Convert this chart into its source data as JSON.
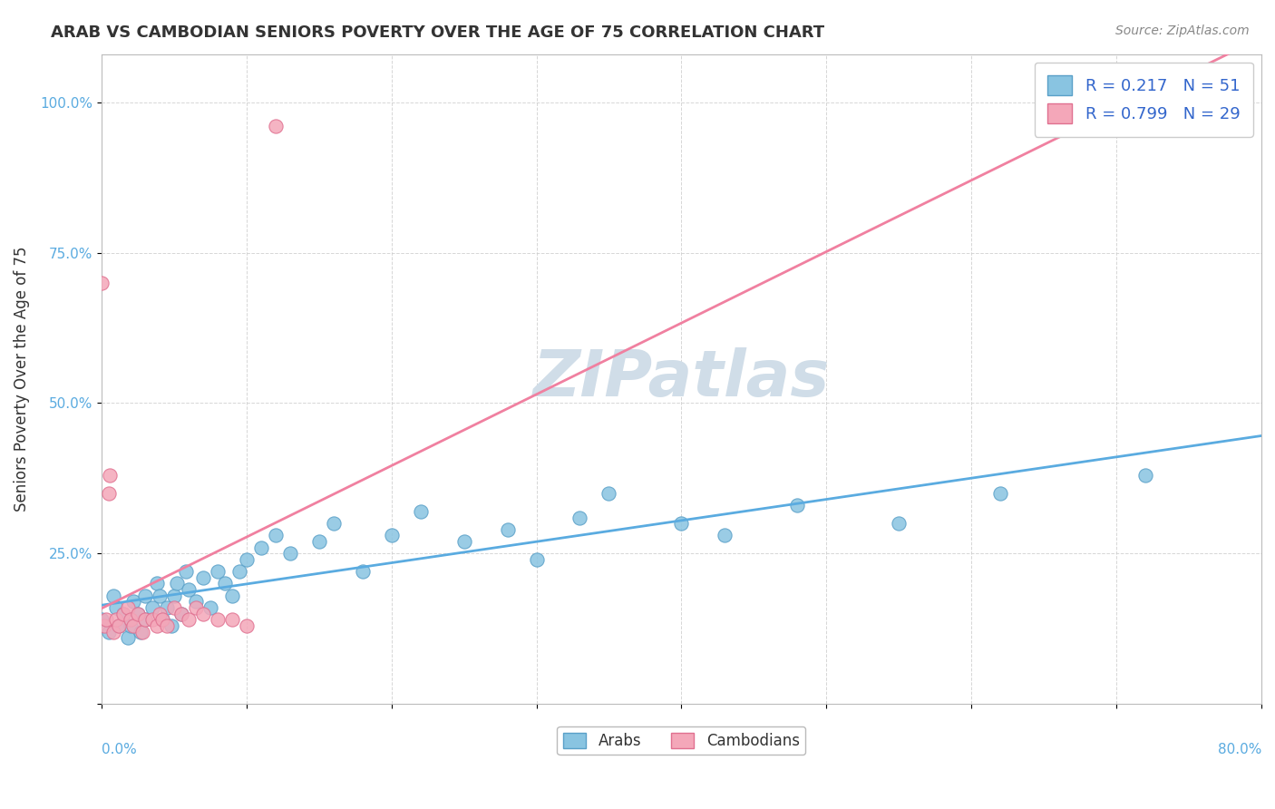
{
  "title": "ARAB VS CAMBODIAN SENIORS POVERTY OVER THE AGE OF 75 CORRELATION CHART",
  "source_text": "Source: ZipAtlas.com",
  "ylabel": "Seniors Poverty Over the Age of 75",
  "xmin": 0.0,
  "xmax": 0.8,
  "ymin": 0.0,
  "ymax": 1.08,
  "yticks": [
    0.0,
    0.25,
    0.5,
    0.75,
    1.0
  ],
  "ytick_labels": [
    "",
    "25.0%",
    "50.0%",
    "75.0%",
    "100.0%"
  ],
  "arab_R": 0.217,
  "arab_N": 51,
  "cambodian_R": 0.799,
  "cambodian_N": 29,
  "arab_color": "#89c4e1",
  "arab_edge_color": "#5aa0c8",
  "cambodian_color": "#f4a7b9",
  "cambodian_edge_color": "#e07090",
  "arab_line_color": "#5aabe0",
  "cambodian_line_color": "#f080a0",
  "watermark_color": "#d0dde8",
  "background_color": "#ffffff",
  "grid_color": "#cccccc",
  "arab_x": [
    0.0,
    0.005,
    0.008,
    0.01,
    0.012,
    0.015,
    0.018,
    0.02,
    0.022,
    0.025,
    0.027,
    0.03,
    0.03,
    0.035,
    0.038,
    0.04,
    0.042,
    0.045,
    0.048,
    0.05,
    0.052,
    0.055,
    0.058,
    0.06,
    0.065,
    0.07,
    0.075,
    0.08,
    0.085,
    0.09,
    0.095,
    0.1,
    0.11,
    0.12,
    0.13,
    0.15,
    0.16,
    0.18,
    0.2,
    0.22,
    0.25,
    0.28,
    0.3,
    0.33,
    0.35,
    0.4,
    0.43,
    0.48,
    0.55,
    0.62,
    0.72
  ],
  "arab_y": [
    0.14,
    0.12,
    0.18,
    0.16,
    0.13,
    0.15,
    0.11,
    0.13,
    0.17,
    0.15,
    0.12,
    0.14,
    0.18,
    0.16,
    0.2,
    0.18,
    0.14,
    0.16,
    0.13,
    0.18,
    0.2,
    0.15,
    0.22,
    0.19,
    0.17,
    0.21,
    0.16,
    0.22,
    0.2,
    0.18,
    0.22,
    0.24,
    0.26,
    0.28,
    0.25,
    0.27,
    0.3,
    0.22,
    0.28,
    0.32,
    0.27,
    0.29,
    0.24,
    0.31,
    0.35,
    0.3,
    0.28,
    0.33,
    0.3,
    0.35,
    0.38
  ],
  "cambodian_x": [
    0.0,
    0.002,
    0.003,
    0.005,
    0.006,
    0.008,
    0.01,
    0.012,
    0.015,
    0.018,
    0.02,
    0.022,
    0.025,
    0.028,
    0.03,
    0.035,
    0.038,
    0.04,
    0.042,
    0.045,
    0.05,
    0.055,
    0.06,
    0.065,
    0.07,
    0.08,
    0.09,
    0.1,
    0.12
  ],
  "cambodian_y": [
    0.7,
    0.13,
    0.14,
    0.35,
    0.38,
    0.12,
    0.14,
    0.13,
    0.15,
    0.16,
    0.14,
    0.13,
    0.15,
    0.12,
    0.14,
    0.14,
    0.13,
    0.15,
    0.14,
    0.13,
    0.16,
    0.15,
    0.14,
    0.16,
    0.15,
    0.14,
    0.14,
    0.13,
    0.96
  ]
}
